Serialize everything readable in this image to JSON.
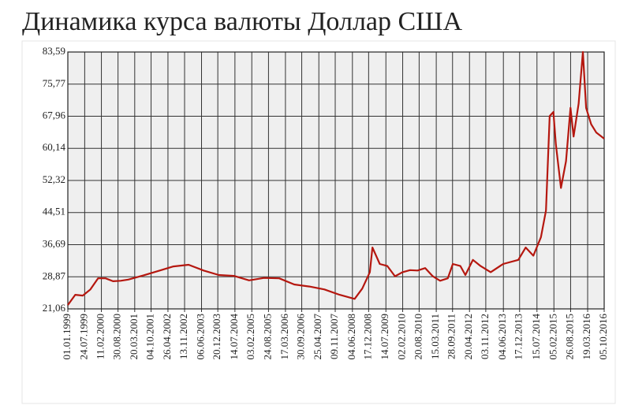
{
  "chart_data": {
    "type": "line",
    "title": "Динамика курса валюты Доллар США",
    "color": "#b5170f",
    "grid": true,
    "ylim": [
      21.06,
      83.59
    ],
    "yticks": [
      {
        "value": 21.06,
        "label": "21,06"
      },
      {
        "value": 28.87,
        "label": "28,87"
      },
      {
        "value": 36.69,
        "label": "36,69"
      },
      {
        "value": 44.51,
        "label": "44,51"
      },
      {
        "value": 52.32,
        "label": "52,32"
      },
      {
        "value": 60.14,
        "label": "60,14"
      },
      {
        "value": 67.96,
        "label": "67,96"
      },
      {
        "value": 75.77,
        "label": "75,77"
      },
      {
        "value": 83.59,
        "label": "83,59"
      }
    ],
    "xlim": [
      "01.01.1999",
      "05.10.2016"
    ],
    "xticks": [
      "01.01.1999",
      "24.07.1999",
      "11.02.2000",
      "30.08.2000",
      "20.03.2001",
      "04.10.2001",
      "26.04.2002",
      "13.11.2002",
      "06.06.2003",
      "20.12.2003",
      "14.07.2004",
      "03.02.2005",
      "24.08.2005",
      "17.03.2006",
      "30.09.2006",
      "25.04.2007",
      "09.11.2007",
      "04.06.2008",
      "17.12.2008",
      "14.07.2009",
      "02.02.2010",
      "20.08.2010",
      "15.03.2011",
      "28.09.2011",
      "20.04.2012",
      "03.11.2012",
      "04.06.2013",
      "17.12.2013",
      "15.07.2014",
      "05.02.2015",
      "26.08.2015",
      "19.03.2016",
      "05.10.2016"
    ],
    "x": [
      "01.01.1999",
      "01.04.1999",
      "01.07.1999",
      "01.10.1999",
      "01.01.2000",
      "01.04.2000",
      "01.07.2000",
      "01.10.2000",
      "01.01.2001",
      "01.07.2001",
      "01.01.2002",
      "01.07.2002",
      "01.01.2003",
      "01.07.2003",
      "01.01.2004",
      "01.07.2004",
      "01.01.2005",
      "01.07.2005",
      "01.01.2006",
      "01.07.2006",
      "01.01.2007",
      "01.07.2007",
      "01.01.2008",
      "01.07.2008",
      "01.10.2008",
      "01.01.2009",
      "01.02.2009",
      "01.05.2009",
      "01.08.2009",
      "01.11.2009",
      "01.02.2010",
      "01.05.2010",
      "01.08.2010",
      "01.11.2010",
      "01.02.2011",
      "01.05.2011",
      "01.08.2011",
      "01.10.2011",
      "01.01.2012",
      "01.03.2012",
      "01.06.2012",
      "01.09.2012",
      "01.01.2013",
      "01.06.2013",
      "01.12.2013",
      "01.03.2014",
      "01.06.2014",
      "01.09.2014",
      "01.11.2014",
      "16.12.2014",
      "30.01.2015",
      "01.03.2015",
      "01.05.2015",
      "01.07.2015",
      "25.08.2015",
      "01.10.2015",
      "01.12.2015",
      "21.01.2016",
      "01.03.2016",
      "01.05.2016",
      "01.07.2016",
      "05.10.2016"
    ],
    "values": [
      22.0,
      24.5,
      24.3,
      25.8,
      28.5,
      28.5,
      27.8,
      27.9,
      28.2,
      29.2,
      30.3,
      31.4,
      31.8,
      30.4,
      29.3,
      29.1,
      28.0,
      28.6,
      28.5,
      27.0,
      26.5,
      25.8,
      24.5,
      23.5,
      26.0,
      30.0,
      36.0,
      32.0,
      31.5,
      29.0,
      30.0,
      30.5,
      30.4,
      31.0,
      29.0,
      27.9,
      28.5,
      32.0,
      31.5,
      29.3,
      33.0,
      31.5,
      30.0,
      32.0,
      33.0,
      36.0,
      34.0,
      38.5,
      45.0,
      68.0,
      69.0,
      61.0,
      50.5,
      57.0,
      70.0,
      63.0,
      71.0,
      83.59,
      70.0,
      66.0,
      64.0,
      62.5
    ]
  }
}
